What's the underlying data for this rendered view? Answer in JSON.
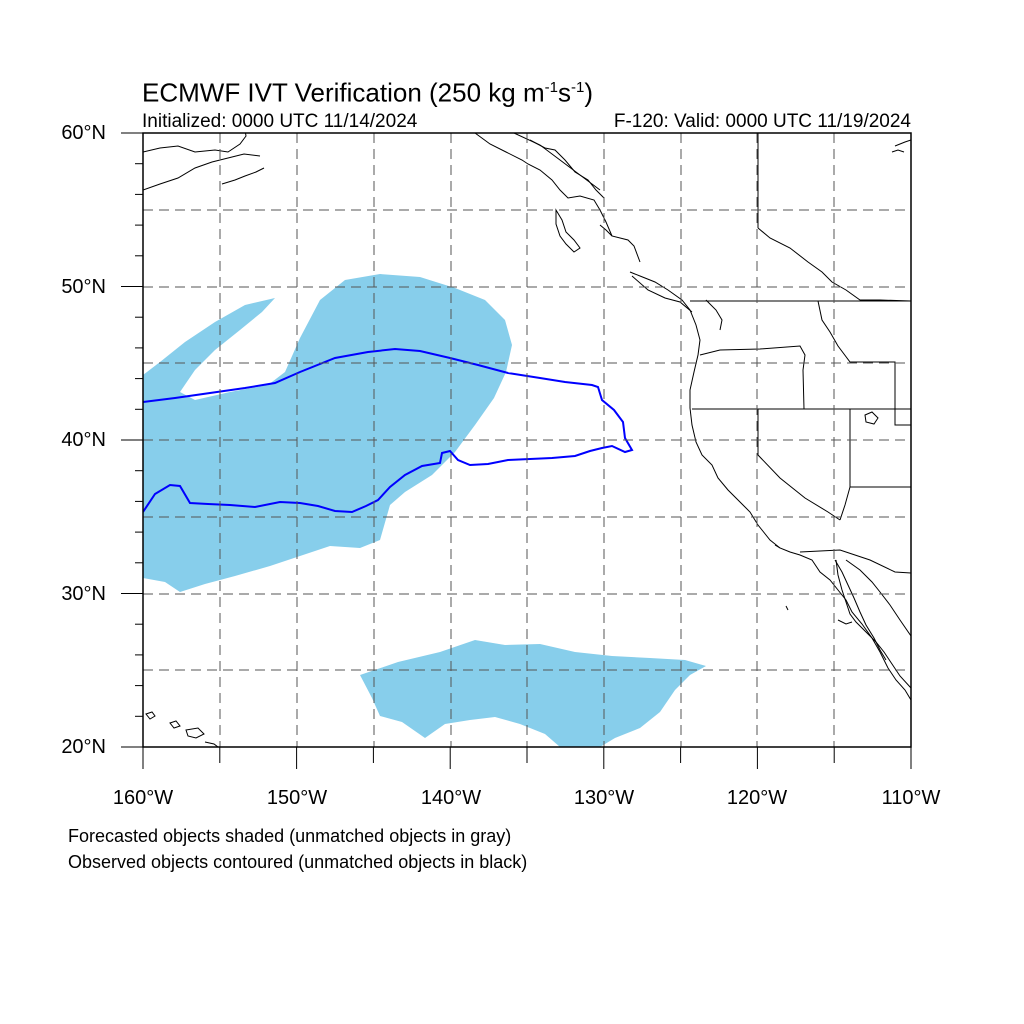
{
  "title": {
    "main": "ECMWF IVT Verification (250 kg m",
    "sup1": "-1",
    "mid": "s",
    "sup2": "-1",
    "end": ")"
  },
  "init_label": "Initialized: 0000 UTC 11/14/2024",
  "valid_label": "F-120: Valid: 0000 UTC 11/19/2024",
  "lat_labels": [
    "60°N",
    "50°N",
    "40°N",
    "30°N",
    "20°N"
  ],
  "lon_labels": [
    "160°W",
    "150°W",
    "140°W",
    "130°W",
    "120°W",
    "110°W"
  ],
  "footnote_1": "Forecasted objects shaded (unmatched objects in gray)",
  "footnote_2": "Observed objects contoured (unmatched objects in black)",
  "colors": {
    "forecast_fill": "#87ceeb",
    "observed_contour": "#0000ff",
    "coastline": "#000000",
    "grid": "#555555"
  },
  "map_extent": {
    "lon": [
      -160,
      -110
    ],
    "lat": [
      20,
      60
    ]
  }
}
